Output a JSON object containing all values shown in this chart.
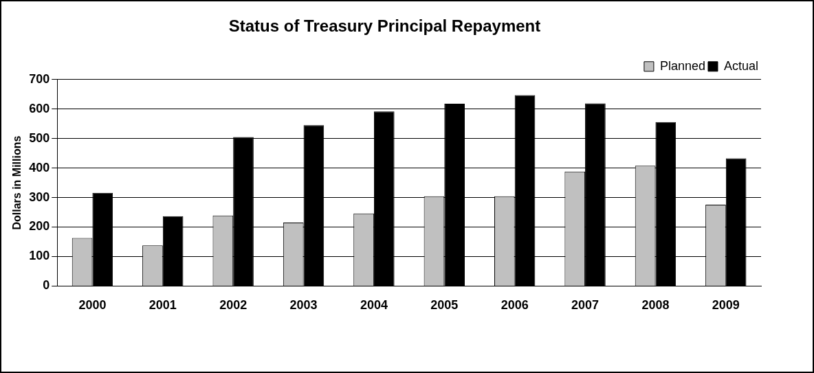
{
  "chart_data": {
    "type": "bar",
    "title": "Status of Treasury Principal Repayment",
    "ylabel": "Dollars in Millions",
    "categories": [
      "2000",
      "2001",
      "2002",
      "2003",
      "2004",
      "2005",
      "2006",
      "2007",
      "2008",
      "2009"
    ],
    "series": [
      {
        "name": "Planned",
        "color": "#c0c0c0",
        "values": [
          163,
          138,
          239,
          215,
          246,
          304,
          304,
          388,
          408,
          276
        ]
      },
      {
        "name": "Actual",
        "color": "#000000",
        "values": [
          316,
          237,
          505,
          545,
          592,
          618,
          647,
          619,
          556,
          433
        ]
      }
    ],
    "ylim": [
      0,
      700
    ],
    "yticks": [
      0,
      100,
      200,
      300,
      400,
      500,
      600,
      700
    ],
    "grid": "y",
    "legend": "top right"
  }
}
